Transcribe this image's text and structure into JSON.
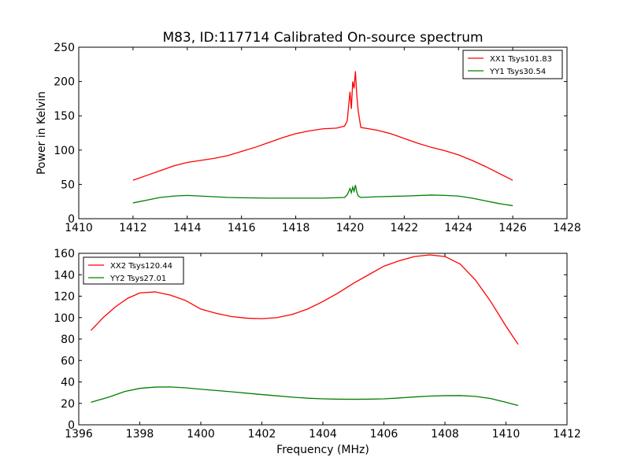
{
  "chart_data": [
    {
      "type": "line",
      "title": "M83, ID:117714 Calibrated On-source spectrum",
      "xlabel": "",
      "ylabel": "Power in Kelvin",
      "xlim": [
        1410,
        1428
      ],
      "ylim": [
        0,
        250
      ],
      "xticks": [
        1410,
        1412,
        1414,
        1416,
        1418,
        1420,
        1422,
        1424,
        1426,
        1428
      ],
      "yticks": [
        0,
        50,
        100,
        150,
        200,
        250
      ],
      "grid": false,
      "legend": "top-right",
      "series": [
        {
          "name": "XX1 Tsys101.83",
          "color": "#ff0000",
          "points": [
            [
              1412,
              56
            ],
            [
              1412.5,
              63
            ],
            [
              1413,
              70
            ],
            [
              1413.5,
              77
            ],
            [
              1414,
              82
            ],
            [
              1414.5,
              85
            ],
            [
              1415,
              88
            ],
            [
              1415.5,
              92
            ],
            [
              1416,
              98
            ],
            [
              1416.5,
              104
            ],
            [
              1417,
              111
            ],
            [
              1417.5,
              118
            ],
            [
              1418,
              124
            ],
            [
              1418.5,
              128
            ],
            [
              1419,
              131
            ],
            [
              1419.5,
              132
            ],
            [
              1419.8,
              135
            ],
            [
              1419.9,
              143
            ],
            [
              1419.95,
              165
            ],
            [
              1420.0,
              185
            ],
            [
              1420.05,
              160
            ],
            [
              1420.1,
              200
            ],
            [
              1420.15,
              190
            ],
            [
              1420.2,
              215
            ],
            [
              1420.25,
              180
            ],
            [
              1420.3,
              158
            ],
            [
              1420.35,
              145
            ],
            [
              1420.4,
              133
            ],
            [
              1421,
              129
            ],
            [
              1421.5,
              124
            ],
            [
              1422,
              117
            ],
            [
              1422.5,
              110
            ],
            [
              1423,
              104
            ],
            [
              1423.5,
              99
            ],
            [
              1424,
              93
            ],
            [
              1424.5,
              85
            ],
            [
              1425,
              76
            ],
            [
              1425.5,
              66
            ],
            [
              1426,
              56
            ]
          ]
        },
        {
          "name": "YY1 Tsys30.54",
          "color": "#008000",
          "points": [
            [
              1412,
              23
            ],
            [
              1412.5,
              27
            ],
            [
              1413,
              31
            ],
            [
              1413.5,
              33
            ],
            [
              1414,
              34
            ],
            [
              1414.5,
              33
            ],
            [
              1415,
              32
            ],
            [
              1415.5,
              31
            ],
            [
              1416,
              30.5
            ],
            [
              1417,
              30
            ],
            [
              1418,
              30
            ],
            [
              1419,
              30
            ],
            [
              1419.8,
              31
            ],
            [
              1419.9,
              35
            ],
            [
              1420.0,
              44
            ],
            [
              1420.05,
              38
            ],
            [
              1420.1,
              46
            ],
            [
              1420.15,
              40
            ],
            [
              1420.2,
              49
            ],
            [
              1420.25,
              39
            ],
            [
              1420.3,
              33
            ],
            [
              1420.4,
              31
            ],
            [
              1421,
              32
            ],
            [
              1422,
              33
            ],
            [
              1423,
              34.5
            ],
            [
              1423.5,
              34
            ],
            [
              1424,
              33
            ],
            [
              1424.5,
              30
            ],
            [
              1425,
              26
            ],
            [
              1425.5,
              22
            ],
            [
              1426,
              19
            ]
          ]
        }
      ]
    },
    {
      "type": "line",
      "title": "",
      "xlabel": "Frequency (MHz)",
      "ylabel": "",
      "xlim": [
        1396,
        1412
      ],
      "ylim": [
        0,
        160
      ],
      "xticks": [
        1396,
        1398,
        1400,
        1402,
        1404,
        1406,
        1408,
        1410,
        1412
      ],
      "yticks": [
        0,
        20,
        40,
        60,
        80,
        100,
        120,
        140,
        160
      ],
      "grid": false,
      "legend": "top-left",
      "series": [
        {
          "name": "XX2 Tsys120.44",
          "color": "#ff0000",
          "points": [
            [
              1396.4,
              88
            ],
            [
              1396.8,
              100
            ],
            [
              1397.2,
              110
            ],
            [
              1397.6,
              118
            ],
            [
              1398,
              123
            ],
            [
              1398.5,
              124
            ],
            [
              1399,
              121
            ],
            [
              1399.5,
              116
            ],
            [
              1400,
              108
            ],
            [
              1400.5,
              104
            ],
            [
              1401,
              101
            ],
            [
              1401.5,
              99.5
            ],
            [
              1402,
              99
            ],
            [
              1402.5,
              100
            ],
            [
              1403,
              103
            ],
            [
              1403.5,
              108
            ],
            [
              1404,
              115
            ],
            [
              1404.5,
              123
            ],
            [
              1405,
              132
            ],
            [
              1405.5,
              140
            ],
            [
              1406,
              148
            ],
            [
              1406.5,
              153
            ],
            [
              1407,
              157
            ],
            [
              1407.5,
              158.5
            ],
            [
              1408,
              157
            ],
            [
              1408.5,
              150
            ],
            [
              1409,
              135
            ],
            [
              1409.5,
              115
            ],
            [
              1410,
              92
            ],
            [
              1410.4,
              75
            ]
          ]
        },
        {
          "name": "YY2 Tsys27.01",
          "color": "#008000",
          "points": [
            [
              1396.4,
              21
            ],
            [
              1397,
              26
            ],
            [
              1397.5,
              31
            ],
            [
              1398,
              34
            ],
            [
              1398.5,
              35.2
            ],
            [
              1399,
              35.3
            ],
            [
              1399.5,
              34.5
            ],
            [
              1400,
              33.2
            ],
            [
              1400.5,
              32
            ],
            [
              1401,
              30.8
            ],
            [
              1401.5,
              29.5
            ],
            [
              1402,
              28.2
            ],
            [
              1402.5,
              27
            ],
            [
              1403,
              25.8
            ],
            [
              1403.5,
              24.8
            ],
            [
              1404,
              24.2
            ],
            [
              1404.5,
              23.9
            ],
            [
              1405,
              23.8
            ],
            [
              1405.5,
              23.9
            ],
            [
              1406,
              24.2
            ],
            [
              1406.5,
              25
            ],
            [
              1407,
              26
            ],
            [
              1407.5,
              26.8
            ],
            [
              1408,
              27.2
            ],
            [
              1408.5,
              27.3
            ],
            [
              1409,
              26.5
            ],
            [
              1409.5,
              24.5
            ],
            [
              1410,
              21
            ],
            [
              1410.4,
              18
            ]
          ]
        }
      ]
    }
  ]
}
